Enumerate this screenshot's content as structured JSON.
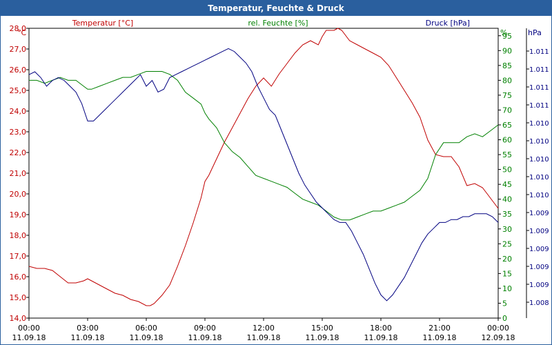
{
  "window": {
    "title": "Temperatur, Feuchte & Druck"
  },
  "chart_data": {
    "type": "line",
    "title": "Temperatur, Feuchte & Druck",
    "x_labels": [
      {
        "time": "00:00",
        "date": "11.09.18"
      },
      {
        "time": "03:00",
        "date": "11.09.18"
      },
      {
        "time": "06:00",
        "date": "11.09.18"
      },
      {
        "time": "09:00",
        "date": "11.09.18"
      },
      {
        "time": "12:00",
        "date": "11.09.18"
      },
      {
        "time": "15:00",
        "date": "11.09.18"
      },
      {
        "time": "18:00",
        "date": "11.09.18"
      },
      {
        "time": "21:00",
        "date": "11.09.18"
      },
      {
        "time": "00:00",
        "date": "12.09.18"
      }
    ],
    "x_range_hours": [
      0,
      24
    ],
    "grid": true,
    "axes": {
      "temperature": {
        "unit": "°C",
        "range": [
          14.0,
          28.0
        ],
        "ticks": [
          "14,0",
          "15,0",
          "16,0",
          "17,0",
          "18,0",
          "19,0",
          "20,0",
          "21,0",
          "22,0",
          "23,0",
          "24,0",
          "25,0",
          "26,0",
          "27,0",
          "28,0"
        ],
        "color": "#c00000"
      },
      "humidity": {
        "unit": "%",
        "range": [
          0,
          97.5
        ],
        "ticks": [
          "0",
          "5",
          "10",
          "15",
          "20",
          "25",
          "30",
          "35",
          "40",
          "45",
          "50",
          "55",
          "60",
          "65",
          "70",
          "75",
          "80",
          "85",
          "90",
          "95"
        ],
        "color": "#008000"
      },
      "pressure": {
        "unit": "hPa",
        "tick_labels": [
          "1.011",
          "1.011",
          "1.011",
          "1.011",
          "1.010",
          "1.010",
          "1.010",
          "1.010",
          "1.010",
          "1.009",
          "1.009",
          "1.009",
          "1.009",
          "1.009",
          "1.008"
        ],
        "color": "#000080"
      }
    },
    "series": [
      {
        "name": "Temperatur [°C]",
        "axis": "temperature",
        "color": "#c00000",
        "x": [
          0,
          0.4,
          0.8,
          1.2,
          1.6,
          2.0,
          2.4,
          2.8,
          3.0,
          3.2,
          3.6,
          4.0,
          4.4,
          4.8,
          5.2,
          5.6,
          6.0,
          6.2,
          6.4,
          6.8,
          7.2,
          7.6,
          8.0,
          8.4,
          8.8,
          9.0,
          9.2,
          9.6,
          10.0,
          10.4,
          10.8,
          11.2,
          11.6,
          12.0,
          12.4,
          12.8,
          13.2,
          13.6,
          14.0,
          14.4,
          14.8,
          15.0,
          15.2,
          15.6,
          15.8,
          16.0,
          16.4,
          16.8,
          17.2,
          17.6,
          18.0,
          18.4,
          18.8,
          19.2,
          19.6,
          20.0,
          20.4,
          20.8,
          21.2,
          21.6,
          22.0,
          22.4,
          22.8,
          23.2,
          23.6,
          24.0
        ],
        "values": [
          16.5,
          16.4,
          16.4,
          16.3,
          16.0,
          15.7,
          15.7,
          15.8,
          15.9,
          15.8,
          15.6,
          15.4,
          15.2,
          15.1,
          14.9,
          14.8,
          14.6,
          14.6,
          14.7,
          15.1,
          15.6,
          16.5,
          17.5,
          18.6,
          19.8,
          20.6,
          20.9,
          21.7,
          22.5,
          23.2,
          23.9,
          24.6,
          25.2,
          25.6,
          25.2,
          25.8,
          26.3,
          26.8,
          27.2,
          27.4,
          27.2,
          27.6,
          27.9,
          27.9,
          28.0,
          27.9,
          27.4,
          27.2,
          27.0,
          26.8,
          26.6,
          26.2,
          25.6,
          25.0,
          24.4,
          23.7,
          22.6,
          21.9,
          21.8,
          21.8,
          21.3,
          20.4,
          20.5,
          20.3,
          19.8,
          19.3
        ]
      },
      {
        "name": "rel. Feuchte [%]",
        "axis": "humidity",
        "color": "#008000",
        "x": [
          0,
          0.4,
          0.8,
          1.2,
          1.6,
          2.0,
          2.4,
          2.8,
          3.0,
          3.2,
          3.6,
          4.0,
          4.4,
          4.8,
          5.2,
          5.6,
          6.0,
          6.4,
          6.8,
          7.2,
          7.6,
          8.0,
          8.4,
          8.8,
          9.0,
          9.2,
          9.6,
          10.0,
          10.4,
          10.8,
          11.2,
          11.6,
          12.0,
          12.4,
          12.8,
          13.2,
          13.6,
          14.0,
          14.4,
          14.8,
          15.0,
          15.2,
          15.6,
          16.0,
          16.4,
          16.8,
          17.2,
          17.6,
          18.0,
          18.4,
          18.8,
          19.2,
          19.6,
          20.0,
          20.4,
          20.8,
          21.2,
          21.6,
          22.0,
          22.4,
          22.8,
          23.2,
          23.6,
          24.0
        ],
        "values": [
          80,
          80,
          79,
          80,
          81,
          80,
          80,
          78,
          77,
          77,
          78,
          79,
          80,
          81,
          81,
          82,
          83,
          83,
          83,
          82,
          80,
          76,
          74,
          72,
          69,
          67,
          64,
          59,
          56,
          54,
          51,
          48,
          47,
          46,
          45,
          44,
          42,
          40,
          39,
          38,
          37,
          36,
          34,
          33,
          33,
          34,
          35,
          36,
          36,
          37,
          38,
          39,
          41,
          43,
          47,
          55,
          59,
          59,
          59,
          61,
          62,
          61,
          63,
          65
        ]
      },
      {
        "name": "Druck [hPa]",
        "axis": "pressure",
        "color": "#000080",
        "x": [
          0,
          0.3,
          0.6,
          0.9,
          1.2,
          1.5,
          1.8,
          2.1,
          2.4,
          2.7,
          3.0,
          3.3,
          3.6,
          3.9,
          4.2,
          4.5,
          4.8,
          5.1,
          5.4,
          5.7,
          6.0,
          6.3,
          6.6,
          6.9,
          7.2,
          7.5,
          7.8,
          8.1,
          8.4,
          8.7,
          9.0,
          9.3,
          9.6,
          9.9,
          10.2,
          10.5,
          10.8,
          11.1,
          11.4,
          11.7,
          12.0,
          12.3,
          12.6,
          12.9,
          13.2,
          13.5,
          13.8,
          14.1,
          14.4,
          14.7,
          15.0,
          15.3,
          15.6,
          15.9,
          16.2,
          16.5,
          16.8,
          17.1,
          17.4,
          17.7,
          18.0,
          18.3,
          18.6,
          18.9,
          19.2,
          19.5,
          19.8,
          20.1,
          20.4,
          20.7,
          21.0,
          21.3,
          21.6,
          21.9,
          22.2,
          22.5,
          22.8,
          23.1,
          23.4,
          23.7,
          24.0
        ],
        "values": [
          84,
          85,
          83,
          80,
          82,
          83,
          82,
          80,
          78,
          74,
          68,
          68,
          70,
          72,
          74,
          76,
          78,
          80,
          82,
          84,
          80,
          82,
          78,
          79,
          83,
          84,
          85,
          86,
          87,
          88,
          89,
          90,
          91,
          92,
          93,
          92,
          90,
          88,
          85,
          80,
          76,
          72,
          70,
          65,
          60,
          55,
          50,
          46,
          43,
          40,
          38,
          36,
          34,
          33,
          33,
          30,
          26,
          22,
          17,
          12,
          8,
          6,
          8,
          11,
          14,
          18,
          22,
          26,
          29,
          31,
          33,
          33,
          34,
          34,
          35,
          35,
          36,
          36,
          36,
          35,
          33
        ]
      }
    ],
    "legend": {
      "position": "top",
      "entries": [
        "Temperatur [°C]",
        "rel. Feuchte [%]",
        "Druck [hPa]"
      ]
    }
  }
}
